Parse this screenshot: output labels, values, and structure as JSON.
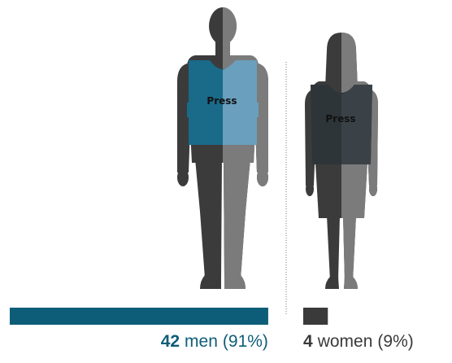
{
  "chart_data": {
    "type": "bar",
    "categories": [
      "men",
      "women"
    ],
    "values": [
      42,
      4
    ],
    "value_share_labels": [
      "(91%)",
      "(9%)"
    ],
    "colors": [
      "#0e5d78",
      "#3a3a3a"
    ]
  },
  "figure_labels": {
    "vest": "Press"
  }
}
